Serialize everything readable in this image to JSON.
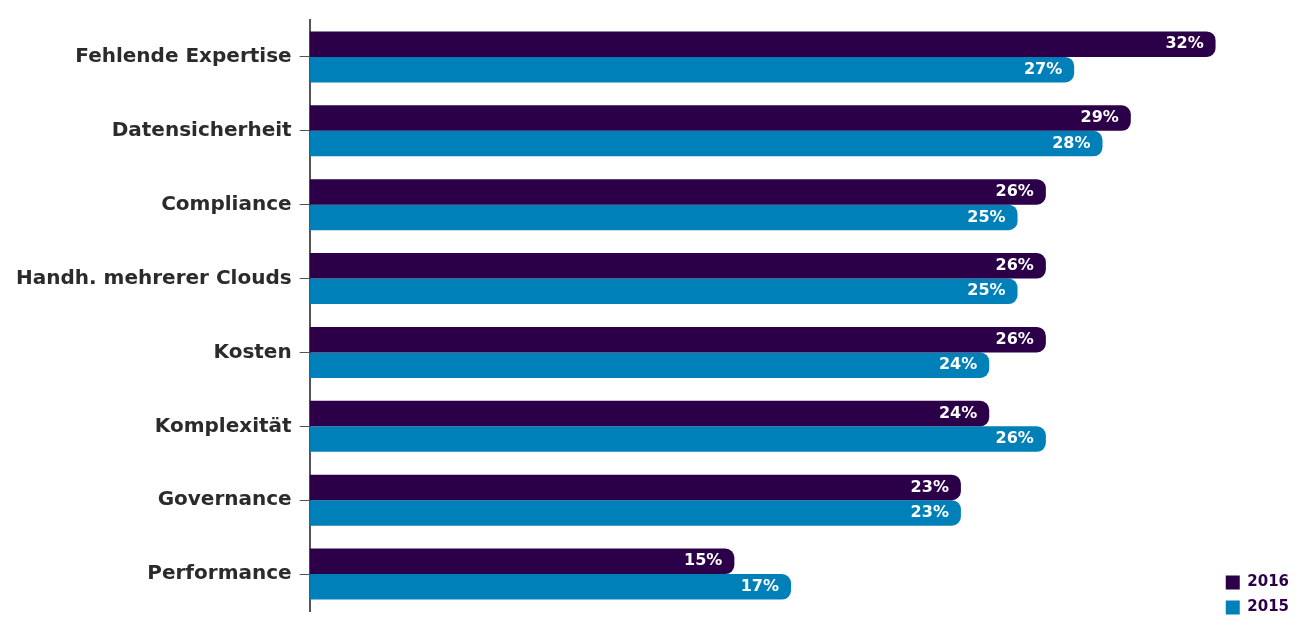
{
  "chart_data": {
    "type": "bar",
    "orientation": "horizontal",
    "categories": [
      "Fehlende Expertise",
      "Datensicherheit",
      "Compliance",
      "Handh. mehrerer Clouds",
      "Kosten",
      "Komplexität",
      "Governance",
      "Performance"
    ],
    "series": [
      {
        "name": "2016",
        "color": "#2b0049",
        "values": [
          32,
          29,
          26,
          26,
          26,
          24,
          23,
          15
        ],
        "value_labels": [
          "32%",
          "29%",
          "26%",
          "26%",
          "26%",
          "24%",
          "23%",
          "15%"
        ]
      },
      {
        "name": "2015",
        "color": "#0080b8",
        "values": [
          27,
          28,
          25,
          25,
          24,
          26,
          23,
          17
        ],
        "value_labels": [
          "27%",
          "28%",
          "25%",
          "25%",
          "24%",
          "26%",
          "23%",
          "17%"
        ]
      }
    ],
    "xlim": [
      0,
      32
    ],
    "legend": "bottom right",
    "tick_labels": "y"
  }
}
